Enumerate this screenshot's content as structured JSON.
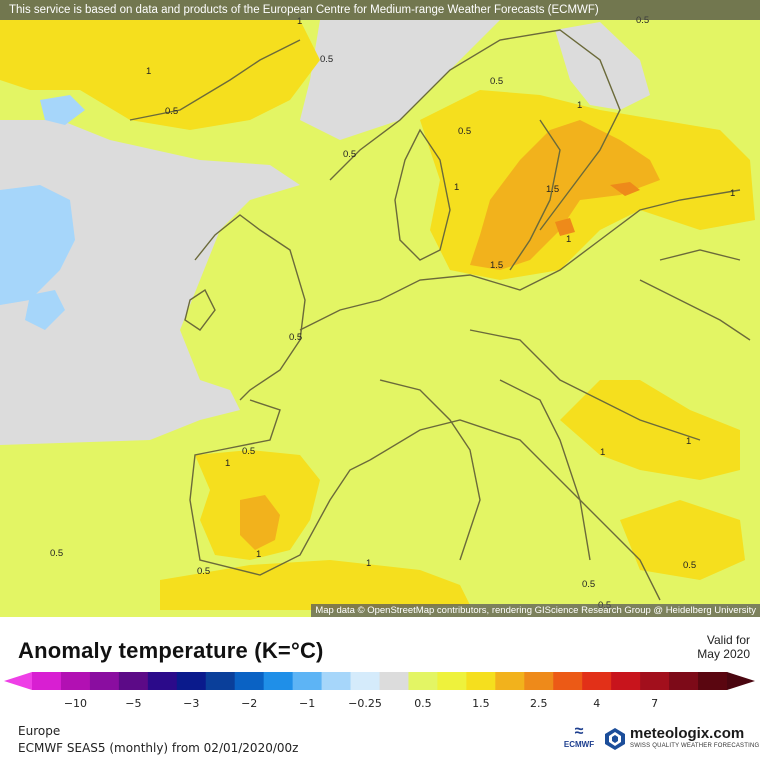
{
  "notice": "This service is based on data and products of the European Centre for Medium-range Weather Forecasts (ECMWF)",
  "attribution": "Map data © OpenStreetMap contributors, rendering GIScience Research Group @ Heidelberg University",
  "title": "Anomaly temperature (K=°C)",
  "valid": {
    "line1": "Valid for",
    "line2": "May 2020"
  },
  "region": "Europe",
  "product": "ECMWF SEAS5 (monthly) from 02/01/2020/00z",
  "logos": {
    "ecmwf": "ECMWF",
    "meteologix": "meteologix.com",
    "meteologix_tag": "SWISS QUALITY WEATHER FORECASTING"
  },
  "colors": {
    "no_data": "#dcdcdc",
    "anom_0_5_1": "#e3f564",
    "anom_1_1_5": "#f5df1e",
    "anom_1_5_2": "#f2b21c",
    "anom_2_2_5": "#ee8a1a",
    "land_border": "#6b6a3a"
  },
  "scale": {
    "colors": [
      "#d81fd2",
      "#b210b3",
      "#8a0da0",
      "#5c0a87",
      "#2b0a8a",
      "#0a1a8c",
      "#0a3f9a",
      "#0a62c4",
      "#1f8fe8",
      "#5db4f5",
      "#a6d6fa",
      "#d5ebfb",
      "#dcdcdc",
      "#e3f564",
      "#eef23c",
      "#f5df1e",
      "#f2b21c",
      "#ee8a1a",
      "#ec5a16",
      "#e23018",
      "#c8141c",
      "#a20f1c",
      "#7d0a18",
      "#5a0610"
    ],
    "ticks": [
      {
        "label": "−10",
        "pos": 1.5
      },
      {
        "label": "−5",
        "pos": 3.5
      },
      {
        "label": "−3",
        "pos": 5.5
      },
      {
        "label": "−2",
        "pos": 7.5
      },
      {
        "label": "−1",
        "pos": 9.5
      },
      {
        "label": "−0.25",
        "pos": 11.5
      },
      {
        "label": "0.5",
        "pos": 13.5
      },
      {
        "label": "1.5",
        "pos": 15.5
      },
      {
        "label": "2.5",
        "pos": 17.5
      },
      {
        "label": "4",
        "pos": 19.5
      },
      {
        "label": "7",
        "pos": 21.5
      }
    ]
  },
  "contour_labels": [
    "0.5",
    "1",
    "1.5",
    "1",
    "1",
    "0.5",
    "0.5",
    "0.5",
    "0.5",
    "1",
    "1",
    "1",
    "1.5",
    "1",
    "1",
    "1",
    "1",
    "1",
    "0.5",
    "0.5",
    "0.5",
    "0.5",
    "0.5",
    "0.5",
    "0.5",
    "0.5"
  ]
}
